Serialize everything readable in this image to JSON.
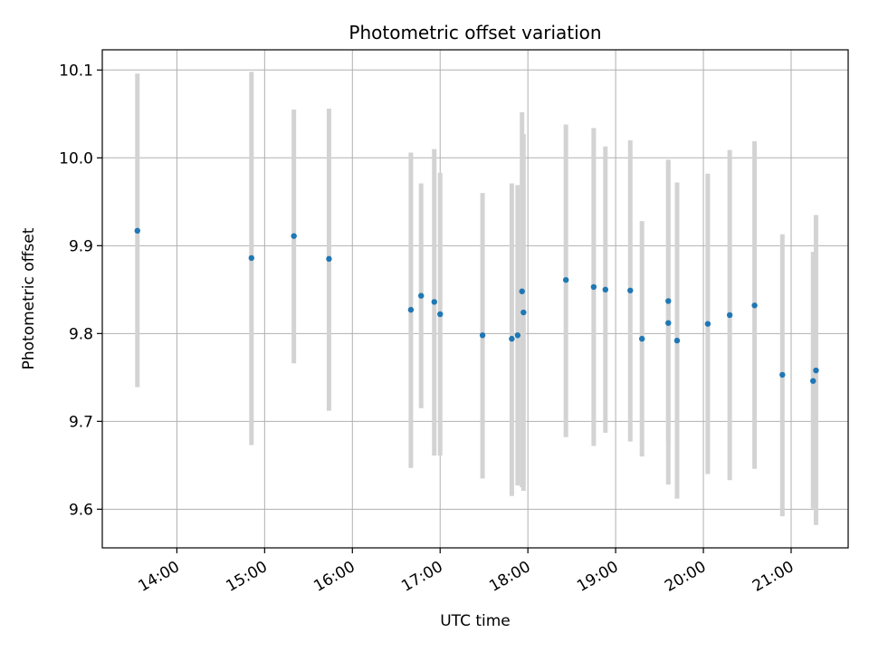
{
  "chart_data": {
    "type": "scatter",
    "title": "Photometric offset variation",
    "xlabel": "UTC time",
    "ylabel": "Photometric offset",
    "x_axis_type": "time",
    "xlim": [
      "13:09",
      "21:39"
    ],
    "ylim": [
      9.556,
      10.123
    ],
    "grid": true,
    "x_ticks": [
      "14:00",
      "15:00",
      "16:00",
      "17:00",
      "18:00",
      "19:00",
      "20:00",
      "21:00"
    ],
    "y_ticks": [
      9.6,
      9.7,
      9.8,
      9.9,
      10.0,
      10.1
    ],
    "y_tick_labels": [
      "9.6",
      "9.7",
      "9.8",
      "9.9",
      "10.0",
      "10.1"
    ],
    "colors": {
      "point": "#1f77b4",
      "errorbar": "#d3d3d3",
      "grid": "#b0b0b0"
    },
    "points": [
      {
        "x": "13:33",
        "y": 9.917,
        "ylow": 9.739,
        "yhigh": 10.096
      },
      {
        "x": "14:51",
        "y": 9.886,
        "ylow": 9.673,
        "yhigh": 10.098
      },
      {
        "x": "15:20",
        "y": 9.911,
        "ylow": 9.766,
        "yhigh": 10.055
      },
      {
        "x": "15:44",
        "y": 9.885,
        "ylow": 9.712,
        "yhigh": 10.056
      },
      {
        "x": "16:40",
        "y": 9.827,
        "ylow": 9.647,
        "yhigh": 10.006
      },
      {
        "x": "16:47",
        "y": 9.843,
        "ylow": 9.715,
        "yhigh": 9.971
      },
      {
        "x": "16:56",
        "y": 9.836,
        "ylow": 9.661,
        "yhigh": 10.01
      },
      {
        "x": "17:00",
        "y": 9.822,
        "ylow": 9.661,
        "yhigh": 9.983
      },
      {
        "x": "17:29",
        "y": 9.798,
        "ylow": 9.635,
        "yhigh": 9.96
      },
      {
        "x": "17:49",
        "y": 9.794,
        "ylow": 9.615,
        "yhigh": 9.971
      },
      {
        "x": "17:53",
        "y": 9.798,
        "ylow": 9.627,
        "yhigh": 9.969
      },
      {
        "x": "17:56",
        "y": 9.848,
        "ylow": 9.625,
        "yhigh": 10.052
      },
      {
        "x": "17:57",
        "y": 9.824,
        "ylow": 9.621,
        "yhigh": 10.027
      },
      {
        "x": "18:26",
        "y": 9.861,
        "ylow": 9.682,
        "yhigh": 10.038
      },
      {
        "x": "18:45",
        "y": 9.853,
        "ylow": 9.672,
        "yhigh": 10.034
      },
      {
        "x": "18:53",
        "y": 9.85,
        "ylow": 9.687,
        "yhigh": 10.013
      },
      {
        "x": "19:10",
        "y": 9.849,
        "ylow": 9.677,
        "yhigh": 10.02
      },
      {
        "x": "19:18",
        "y": 9.794,
        "ylow": 9.66,
        "yhigh": 9.928
      },
      {
        "x": "19:36",
        "y": 9.812,
        "ylow": 9.628,
        "yhigh": 9.996
      },
      {
        "x": "19:36",
        "y": 9.837,
        "ylow": 9.676,
        "yhigh": 9.998
      },
      {
        "x": "19:42",
        "y": 9.792,
        "ylow": 9.612,
        "yhigh": 9.972
      },
      {
        "x": "20:03",
        "y": 9.811,
        "ylow": 9.64,
        "yhigh": 9.982
      },
      {
        "x": "20:18",
        "y": 9.821,
        "ylow": 9.633,
        "yhigh": 10.009
      },
      {
        "x": "20:35",
        "y": 9.832,
        "ylow": 9.646,
        "yhigh": 10.019
      },
      {
        "x": "20:54",
        "y": 9.753,
        "ylow": 9.592,
        "yhigh": 9.913
      },
      {
        "x": "21:15",
        "y": 9.746,
        "ylow": 9.601,
        "yhigh": 9.893
      },
      {
        "x": "21:17",
        "y": 9.758,
        "ylow": 9.582,
        "yhigh": 9.935
      }
    ]
  }
}
